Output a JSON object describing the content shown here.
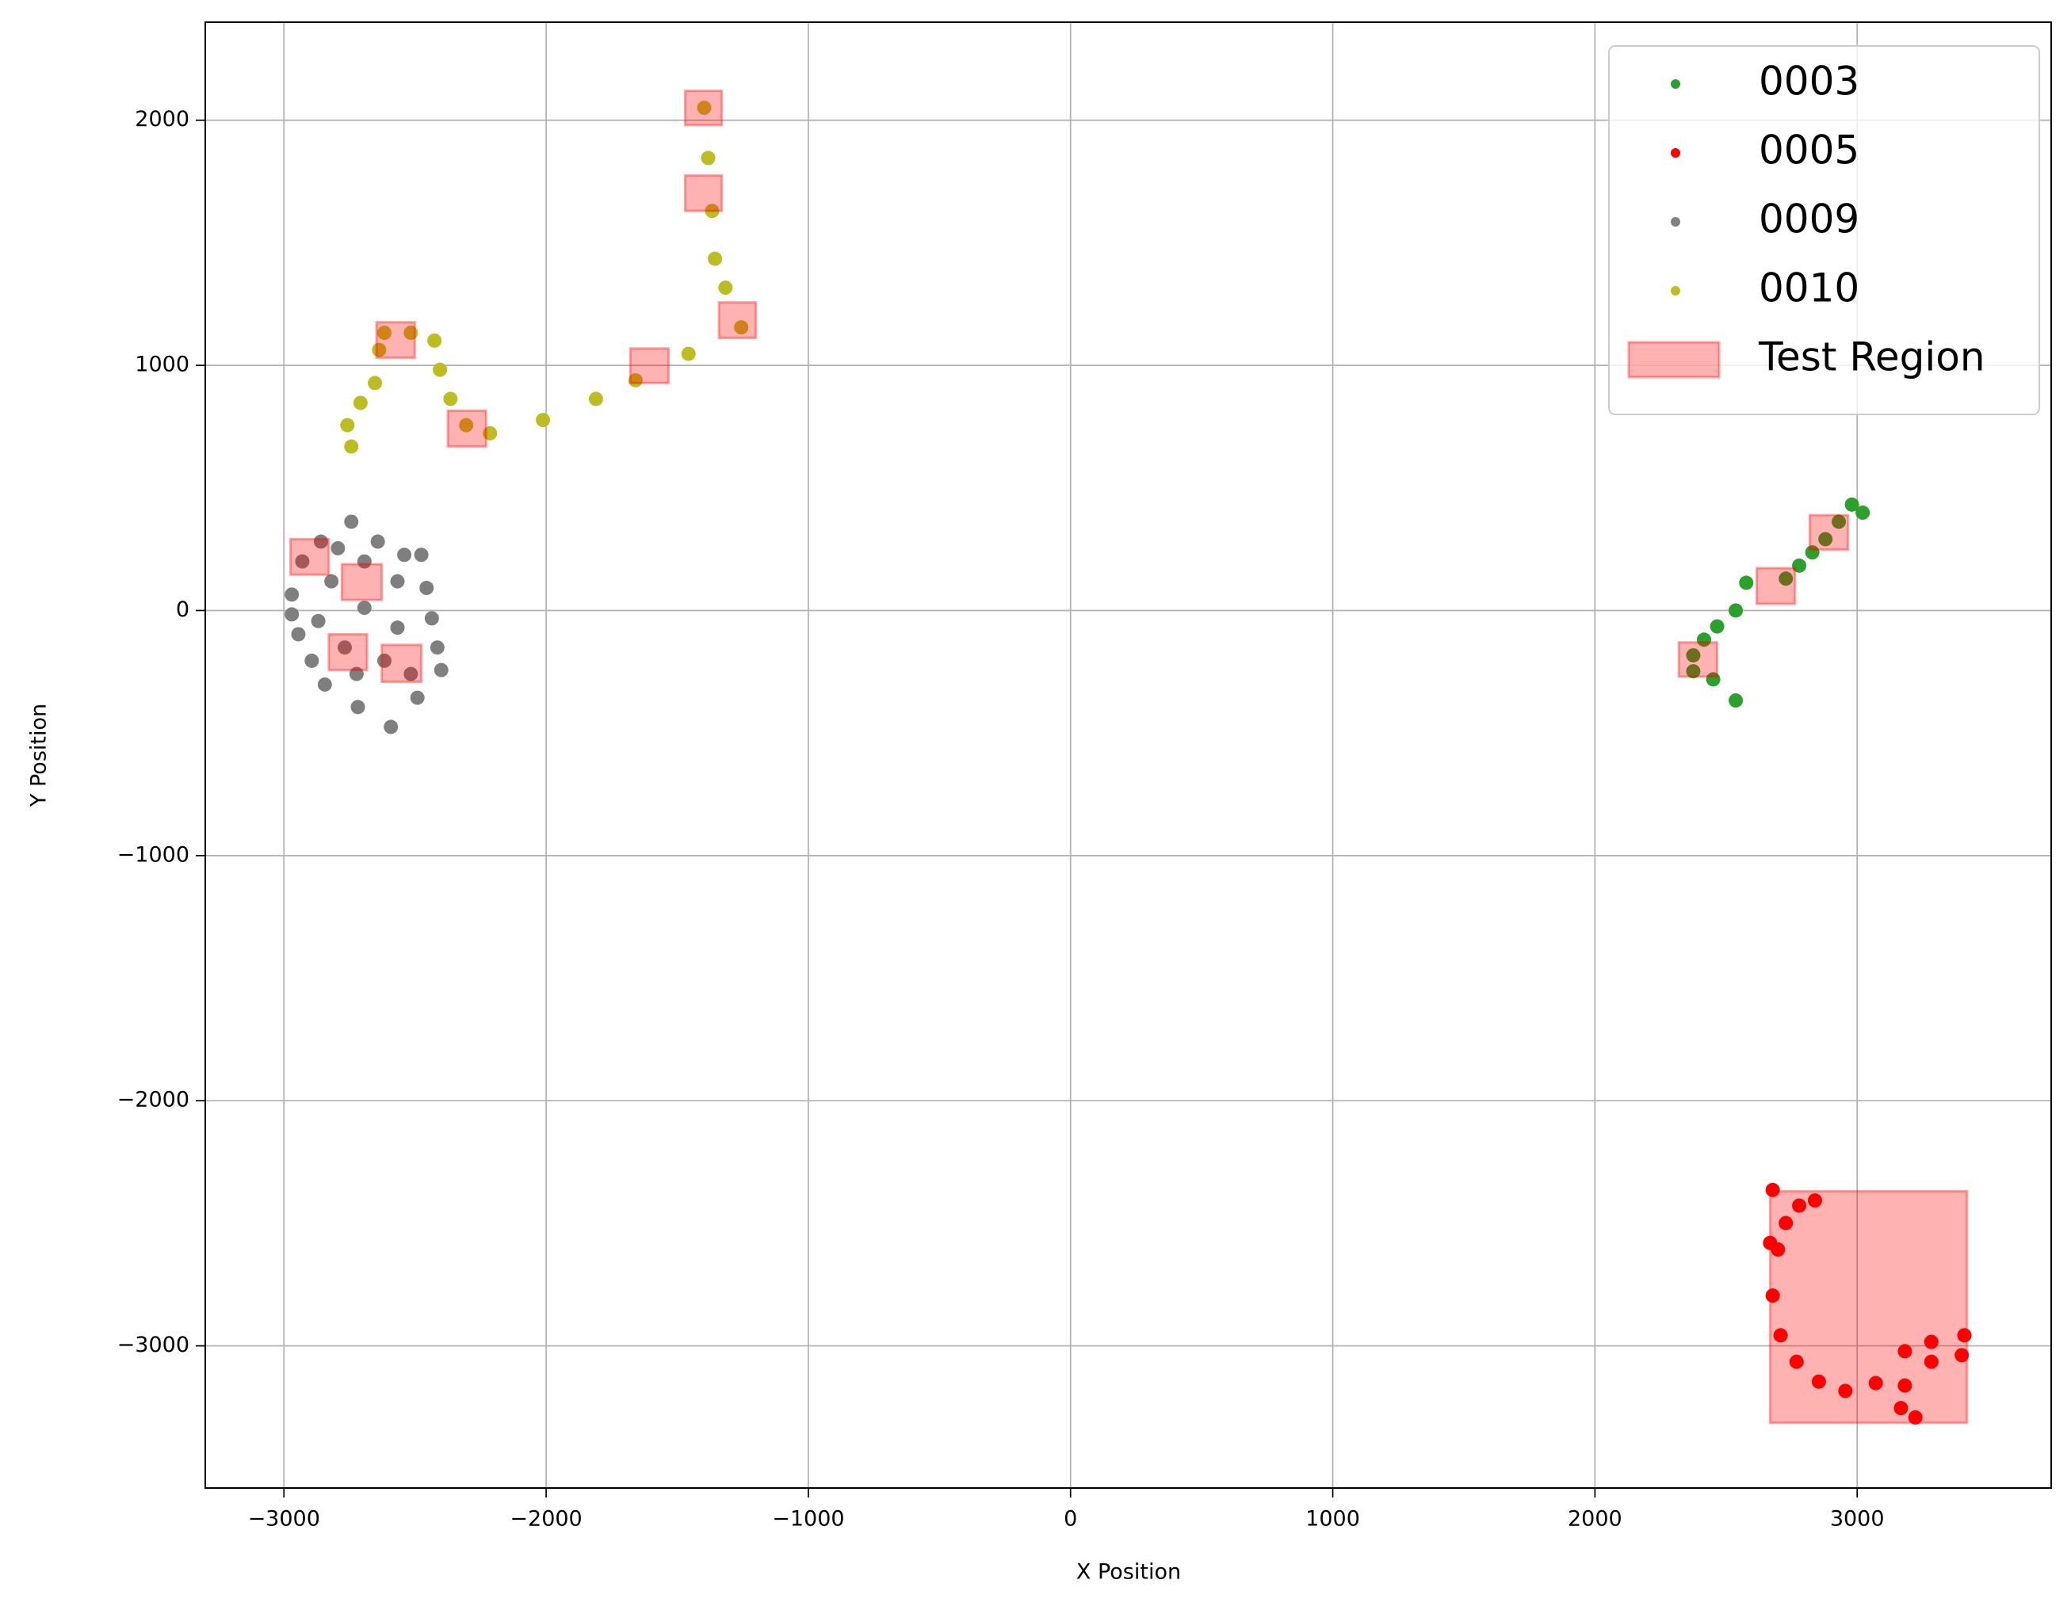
{
  "chart_data": {
    "type": "scatter",
    "xlabel": "X Position",
    "ylabel": "Y Position",
    "xlim": [
      -3300,
      3740
    ],
    "ylim": [
      -3580,
      2400
    ],
    "xticks": [
      {
        "value": -3000,
        "label": "−3000"
      },
      {
        "value": -2000,
        "label": "−2000"
      },
      {
        "value": -1000,
        "label": "−1000"
      },
      0,
      1000,
      2000,
      3000
    ],
    "yticks": [
      {
        "value": -3000,
        "label": "−3000"
      },
      {
        "value": -2000,
        "label": "−2000"
      },
      {
        "value": -1000,
        "label": "−1000"
      },
      0,
      1000,
      2000
    ],
    "grid": true,
    "legend": "upper right",
    "series": [
      {
        "name": "0003",
        "color": "#2ca02c",
        "x": [
          3021,
          2980,
          2930,
          2879,
          2829,
          2779,
          2728,
          2577,
          2537,
          2466,
          2416,
          2375,
          2375,
          2451,
          2537
        ],
        "y": [
          399,
          432,
          362,
          291,
          237,
          183,
          130,
          113,
          0,
          -65,
          -119,
          -183,
          -248,
          -281,
          -367
        ]
      },
      {
        "name": "0005",
        "color": "#ff0000",
        "x": [
          2678,
          2668,
          2678,
          2708,
          2769,
          2854,
          2955,
          3071,
          3182,
          3283,
          3409,
          3399,
          3283,
          3182,
          3167,
          3222,
          2698,
          2728,
          2779,
          2839
        ],
        "y": [
          -2364,
          -2580,
          -2795,
          -2957,
          -3065,
          -3146,
          -3184,
          -3152,
          -3022,
          -2984,
          -2957,
          -3038,
          -3065,
          -3162,
          -3254,
          -3292,
          -2607,
          -2499,
          -2428,
          -2407
        ]
      },
      {
        "name": "0009",
        "color": "#7f7f7f",
        "x": [
          -2970,
          -2930,
          -2859,
          -2743,
          -2642,
          -2541,
          -2476,
          -2456,
          -2436,
          -2415,
          -2400,
          -2491,
          -2592,
          -2718,
          -2844,
          -2894,
          -2945,
          -2970,
          -2819,
          -2693,
          -2567,
          -2768,
          -2617,
          -2693,
          -2567,
          -2794,
          -2869,
          -2516,
          -2723
        ],
        "y": [
          65,
          200,
          281,
          362,
          281,
          227,
          227,
          92,
          -32,
          -151,
          -243,
          -356,
          -475,
          -394,
          -302,
          -205,
          -97,
          -16,
          119,
          11,
          -70,
          -151,
          -205,
          200,
          119,
          254,
          -43,
          -259,
          -259
        ]
      },
      {
        "name": "0010",
        "color": "#bcbd22",
        "x": [
          -2743,
          -2758,
          -2708,
          -2653,
          -2637,
          -2617,
          -2516,
          -2426,
          -2405,
          -2365,
          -2305,
          -2214,
          -2012,
          -1810,
          -1659,
          -1457,
          -1256,
          -1316,
          -1356,
          -1367,
          -1382,
          -1397
        ],
        "y": [
          669,
          756,
          847,
          928,
          1063,
          1133,
          1133,
          1101,
          982,
          863,
          756,
          723,
          777,
          863,
          939,
          1047,
          1155,
          1317,
          1435,
          1630,
          1846,
          2051
        ]
      }
    ],
    "region_label": "Test Region",
    "region_color": "#ff0000",
    "regions": [
      {
        "x0": -1470,
        "y0": 1980,
        "x1": -1330,
        "y1": 2120
      },
      {
        "x0": -1470,
        "y0": 1630,
        "x1": -1330,
        "y1": 1775
      },
      {
        "x0": -1341,
        "y0": 1112,
        "x1": -1200,
        "y1": 1257
      },
      {
        "x0": -1679,
        "y0": 928,
        "x1": -1533,
        "y1": 1069
      },
      {
        "x0": -2647,
        "y0": 1031,
        "x1": -2501,
        "y1": 1176
      },
      {
        "x0": -2375,
        "y0": 669,
        "x1": -2229,
        "y1": 815
      },
      {
        "x0": -2975,
        "y0": 146,
        "x1": -2829,
        "y1": 291
      },
      {
        "x0": -2779,
        "y0": 43,
        "x1": -2627,
        "y1": 189
      },
      {
        "x0": -2829,
        "y0": -243,
        "x1": -2683,
        "y1": -97
      },
      {
        "x0": -2627,
        "y0": -291,
        "x1": -2476,
        "y1": -140
      },
      {
        "x0": 2320,
        "y0": -270,
        "x1": 2466,
        "y1": -130
      },
      {
        "x0": 2617,
        "y0": 27,
        "x1": 2763,
        "y1": 173
      },
      {
        "x0": 2819,
        "y0": 248,
        "x1": 2965,
        "y1": 389
      },
      {
        "x0": 2668,
        "y0": -3314,
        "x1": 3419,
        "y1": -2369
      }
    ]
  }
}
